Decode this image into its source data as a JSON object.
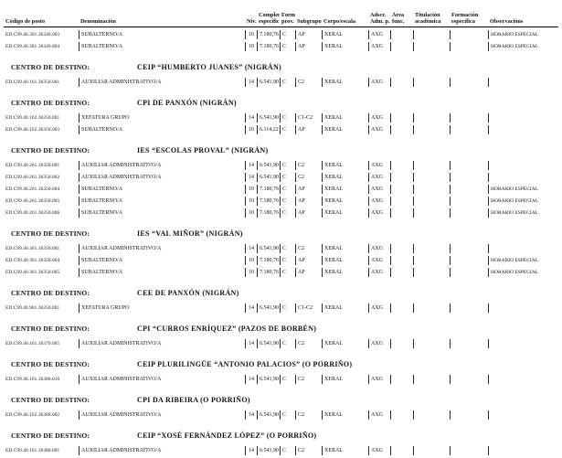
{
  "page": {
    "background": "#ffffff",
    "text_color": "#111111",
    "rule_color": "#000000"
  },
  "table": {
    "centro_label": "CENTRO DE DESTINO:",
    "columns": [
      {
        "id": "codigo",
        "line1": "",
        "line2": "Código de posto"
      },
      {
        "id": "denominacion",
        "line1": "",
        "line2": "Denominación"
      },
      {
        "id": "niv",
        "line1": "",
        "line2": "Niv."
      },
      {
        "id": "complem",
        "line1": "Complem.",
        "line2": "específico"
      },
      {
        "id": "forma",
        "line1": "Forma",
        "line2": "prov."
      },
      {
        "id": "subgrupo",
        "line1": "",
        "line2": "Subgrupo"
      },
      {
        "id": "corpo",
        "line1": "",
        "line2": "Corpo/escala"
      },
      {
        "id": "adscr",
        "line1": "Adscr.",
        "line2": "Adm. p."
      },
      {
        "id": "area",
        "line1": "Área",
        "line2": "func."
      },
      {
        "id": "titulacion",
        "line1": "Titulación",
        "line2": "académica"
      },
      {
        "id": "formacion",
        "line1": "Formación",
        "line2": "específica"
      },
      {
        "id": "observacions",
        "line1": "",
        "line2": "Observacións"
      }
    ],
    "sections": [
      {
        "centro_name": null,
        "rows": [
          {
            "codigo": "ED.C99.40.301.36340.003",
            "denominacion": "SUBALTERNO/A",
            "niv": "10",
            "complem": "7.180,76",
            "forma": "C",
            "subgrupo": "AP",
            "corpo": "XERAL",
            "adscr": "AXG",
            "area": "",
            "titulacion": "",
            "formacion": "",
            "observacions": "HORARIO ESPECIAL"
          },
          {
            "codigo": "ED.C99.40.301.36340.004",
            "denominacion": "SUBALTERNO/A",
            "niv": "10",
            "complem": "7.180,76",
            "forma": "C",
            "subgrupo": "AP",
            "corpo": "XERAL",
            "adscr": "AXG",
            "area": "",
            "titulacion": "",
            "formacion": "",
            "observacions": "HORARIO ESPECIAL"
          }
        ]
      },
      {
        "centro_name": "CEIP “HUMBERTO JUANES” (NIGRÁN)",
        "rows": [
          {
            "codigo": "ED.C99.40.161.36350.001",
            "denominacion": "AUXILIAR ADMINISTRATIVO/A",
            "niv": "14",
            "complem": "6.541,90",
            "forma": "C",
            "subgrupo": "C2",
            "corpo": "XERAL",
            "adscr": "AXG",
            "area": "",
            "titulacion": "",
            "formacion": "",
            "observacions": ""
          }
        ]
      },
      {
        "centro_name": "CPI DE PANXÓN (NIGRÁN)",
        "rows": [
          {
            "codigo": "ED.C99.40.162.36350.001",
            "denominacion": "XEFATURA GRUPO",
            "niv": "14",
            "complem": "6.541,90",
            "forma": "C",
            "subgrupo": "C1-C2",
            "corpo": "XERAL",
            "adscr": "AXG",
            "area": "",
            "titulacion": "",
            "formacion": "",
            "observacions": ""
          },
          {
            "codigo": "ED.C99.40.162.36350.003",
            "denominacion": "SUBALTERNO/A",
            "niv": "10",
            "complem": "6.114,22",
            "forma": "C",
            "subgrupo": "AP",
            "corpo": "XERAL",
            "adscr": "AXG",
            "area": "",
            "titulacion": "",
            "formacion": "",
            "observacions": ""
          }
        ]
      },
      {
        "centro_name": "IES “ESCOLAS PROVAL” (NIGRÁN)",
        "rows": [
          {
            "codigo": "ED.C99.40.261.36350.001",
            "denominacion": "AUXILIAR ADMINISTRATIVO/A",
            "niv": "14",
            "complem": "6.541,90",
            "forma": "C",
            "subgrupo": "C2",
            "corpo": "XERAL",
            "adscr": "AXG",
            "area": "",
            "titulacion": "",
            "formacion": "",
            "observacions": ""
          },
          {
            "codigo": "ED.C99.40.261.36350.002",
            "denominacion": "AUXILIAR ADMINISTRATIVO/A",
            "niv": "14",
            "complem": "6.541,90",
            "forma": "C",
            "subgrupo": "C2",
            "corpo": "XERAL",
            "adscr": "AXG",
            "area": "",
            "titulacion": "",
            "formacion": "",
            "observacions": ""
          },
          {
            "codigo": "ED.C99.40.261.36350.004",
            "denominacion": "SUBALTERNO/A",
            "niv": "10",
            "complem": "7.180,76",
            "forma": "C",
            "subgrupo": "AP",
            "corpo": "XERAL",
            "adscr": "AXG",
            "area": "",
            "titulacion": "",
            "formacion": "",
            "observacions": "HORARIO ESPECIAL"
          },
          {
            "codigo": "ED.C99.40.261.36350.005",
            "denominacion": "SUBALTERNO/A",
            "niv": "10",
            "complem": "7.180,76",
            "forma": "C",
            "subgrupo": "AP",
            "corpo": "XERAL",
            "adscr": "AXG",
            "area": "",
            "titulacion": "",
            "formacion": "",
            "observacions": "HORARIO ESPECIAL"
          },
          {
            "codigo": "ED.C99.40.261.36350.006",
            "denominacion": "SUBALTERNO/A",
            "niv": "10",
            "complem": "7.180,76",
            "forma": "C",
            "subgrupo": "AP",
            "corpo": "XERAL",
            "adscr": "AXG",
            "area": "",
            "titulacion": "",
            "formacion": "",
            "observacions": "HORARIO ESPECIAL"
          }
        ]
      },
      {
        "centro_name": "IES “VAL MIÑOR” (NIGRÁN)",
        "rows": [
          {
            "codigo": "ED.C99.40.361.36350.001",
            "denominacion": "AUXILIAR ADMINISTRATIVO/A",
            "niv": "14",
            "complem": "6.541,90",
            "forma": "C",
            "subgrupo": "C2",
            "corpo": "XERAL",
            "adscr": "AXG",
            "area": "",
            "titulacion": "",
            "formacion": "",
            "observacions": ""
          },
          {
            "codigo": "ED.C99.40.361.36350.004",
            "denominacion": "SUBALTERNO/A",
            "niv": "10",
            "complem": "7.180,76",
            "forma": "C",
            "subgrupo": "AP",
            "corpo": "XERAL",
            "adscr": "AXG",
            "area": "",
            "titulacion": "",
            "formacion": "",
            "observacions": "HORARIO ESPECIAL"
          },
          {
            "codigo": "ED.C99.40.361.36350.005",
            "denominacion": "SUBALTERNO/A",
            "niv": "10",
            "complem": "7.180,76",
            "forma": "C",
            "subgrupo": "AP",
            "corpo": "XERAL",
            "adscr": "AXG",
            "area": "",
            "titulacion": "",
            "formacion": "",
            "observacions": "HORARIO ESPECIAL"
          }
        ]
      },
      {
        "centro_name": "CEE DE PANXÓN (NIGRÁN)",
        "rows": [
          {
            "codigo": "ED.C99.40.901.36350.001",
            "denominacion": "XEFATURA GRUPO",
            "niv": "14",
            "complem": "6.541,90",
            "forma": "C",
            "subgrupo": "C1-C2",
            "corpo": "XERAL",
            "adscr": "AXG",
            "area": "",
            "titulacion": "",
            "formacion": "",
            "observacions": ""
          }
        ]
      },
      {
        "centro_name": "CPI “CURROS ENRÍQUEZ” (PAZOS DE BORBÉN)",
        "rows": [
          {
            "codigo": "ED.C99.40.161.36370.005",
            "denominacion": "AUXILIAR ADMINISTRATIVO/A",
            "niv": "14",
            "complem": "6.541,90",
            "forma": "C",
            "subgrupo": "C2",
            "corpo": "XERAL",
            "adscr": "AXG",
            "area": "",
            "titulacion": "",
            "formacion": "",
            "observacions": ""
          }
        ]
      },
      {
        "centro_name": "CEIP PLURILINGÜE “ANTONIO PALACIOS” (O PORRIÑO)",
        "rows": [
          {
            "codigo": "ED.C99.40.161.36380.010",
            "denominacion": "AUXILIAR ADMINISTRATIVO/A",
            "niv": "14",
            "complem": "6.541,90",
            "forma": "C",
            "subgrupo": "C2",
            "corpo": "XERAL",
            "adscr": "AXG",
            "area": "",
            "titulacion": "",
            "formacion": "",
            "observacions": ""
          }
        ]
      },
      {
        "centro_name": "CPI DA RIBEIRA (O PORRIÑO)",
        "rows": [
          {
            "codigo": "ED.C99.40.162.36380.002",
            "denominacion": "AUXILIAR ADMINISTRATIVO/A",
            "niv": "14",
            "complem": "6.541,90",
            "forma": "C",
            "subgrupo": "C2",
            "corpo": "XERAL",
            "adscr": "AXG",
            "area": "",
            "titulacion": "",
            "formacion": "",
            "observacions": ""
          }
        ]
      },
      {
        "centro_name": "CEIP “XOSÉ FERNÁNDEZ LÓPEZ” (O PORRIÑO)",
        "rows": [
          {
            "codigo": "ED.C99.40.161.36380.001",
            "denominacion": "AUXILIAR ADMINISTRATIVO/A",
            "niv": "14",
            "complem": "6.541,90",
            "forma": "C",
            "subgrupo": "C2",
            "corpo": "XERAL",
            "adscr": "AXG",
            "area": "",
            "titulacion": "",
            "formacion": "",
            "observacions": ""
          }
        ]
      }
    ]
  }
}
